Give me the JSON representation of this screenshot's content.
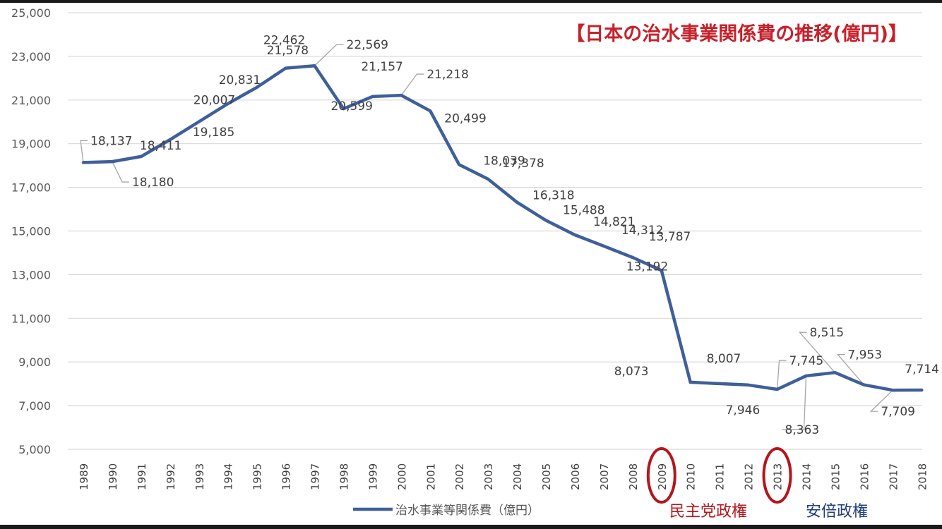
{
  "chart_data": {
    "type": "line",
    "title": "【日本の治水事業関係費の推移(億円)】",
    "xlabel": "",
    "ylabel": "",
    "ylim": [
      5000,
      25000
    ],
    "yticks": [
      "5,000",
      "7,000",
      "9,000",
      "11,000",
      "13,000",
      "15,000",
      "17,000",
      "19,000",
      "21,000",
      "23,000",
      "25,000"
    ],
    "grid": true,
    "legend_position": "bottom",
    "categories": [
      "1989",
      "1990",
      "1991",
      "1992",
      "1993",
      "1994",
      "1995",
      "1996",
      "1997",
      "1998",
      "1999",
      "2000",
      "2001",
      "2002",
      "2003",
      "2004",
      "2005",
      "2006",
      "2007",
      "2008",
      "2009",
      "2010",
      "2011",
      "2012",
      "2013",
      "2014",
      "2015",
      "2016",
      "2017",
      "2018"
    ],
    "series": [
      {
        "name": "治水事業等関係費（億円）",
        "color": "#3f5f9a",
        "values": [
          18137,
          18180,
          18411,
          19185,
          20007,
          20831,
          21578,
          22462,
          22569,
          20599,
          21157,
          21218,
          20499,
          18039,
          17378,
          16318,
          15488,
          14821,
          14312,
          13787,
          13192,
          8073,
          8007,
          7946,
          7745,
          8363,
          8515,
          7953,
          7709,
          7714
        ],
        "labels": [
          "18,137",
          "18,180",
          "18,411",
          "19,185",
          "20,007",
          "20,831",
          "21,578",
          "22,462",
          "22,569",
          "20,599",
          "21,157",
          "21,218",
          "20,499",
          "18,039",
          "17,378",
          "16,318",
          "15,488",
          "14,821",
          "14,312",
          "13,787",
          "13,192",
          "8,073",
          "8,007",
          "7,946",
          "7,745",
          "8,363",
          "8,515",
          "7,953",
          "7,709",
          "7,714"
        ]
      }
    ],
    "annotations": [
      {
        "text": "民主党政権",
        "year": "2009",
        "color": "#b3171d"
      },
      {
        "text": "安倍政権",
        "year": "2013",
        "color": "#1f3e7a"
      }
    ],
    "highlighted_years": [
      "2009",
      "2013"
    ],
    "title_color": "#c8202a"
  }
}
